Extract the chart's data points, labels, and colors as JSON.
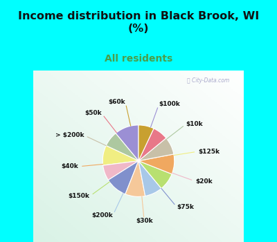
{
  "title": "Income distribution in Black Brook, WI\n(%)",
  "subtitle": "All residents",
  "title_color": "#111111",
  "subtitle_color": "#4a9e4a",
  "bg_cyan": "#00ffff",
  "watermark": "City-Data.com",
  "labels": [
    "$100k",
    "$10k",
    "$125k",
    "$20k",
    "$75k",
    "$30k",
    "$200k",
    "$150k",
    "$40k",
    "> $200k",
    "$50k",
    "$60k"
  ],
  "values": [
    11,
    7,
    9,
    7,
    10,
    9,
    8,
    8,
    9,
    8,
    7,
    7
  ],
  "colors": [
    "#9b8fd4",
    "#adc8a0",
    "#f0ee82",
    "#f0b8c8",
    "#8090cc",
    "#f5c89a",
    "#a8c8e8",
    "#b8e070",
    "#f0a860",
    "#c8c0a8",
    "#e87888",
    "#c8a030"
  ],
  "startangle": 90,
  "figsize": [
    4.0,
    3.5
  ],
  "dpi": 100
}
